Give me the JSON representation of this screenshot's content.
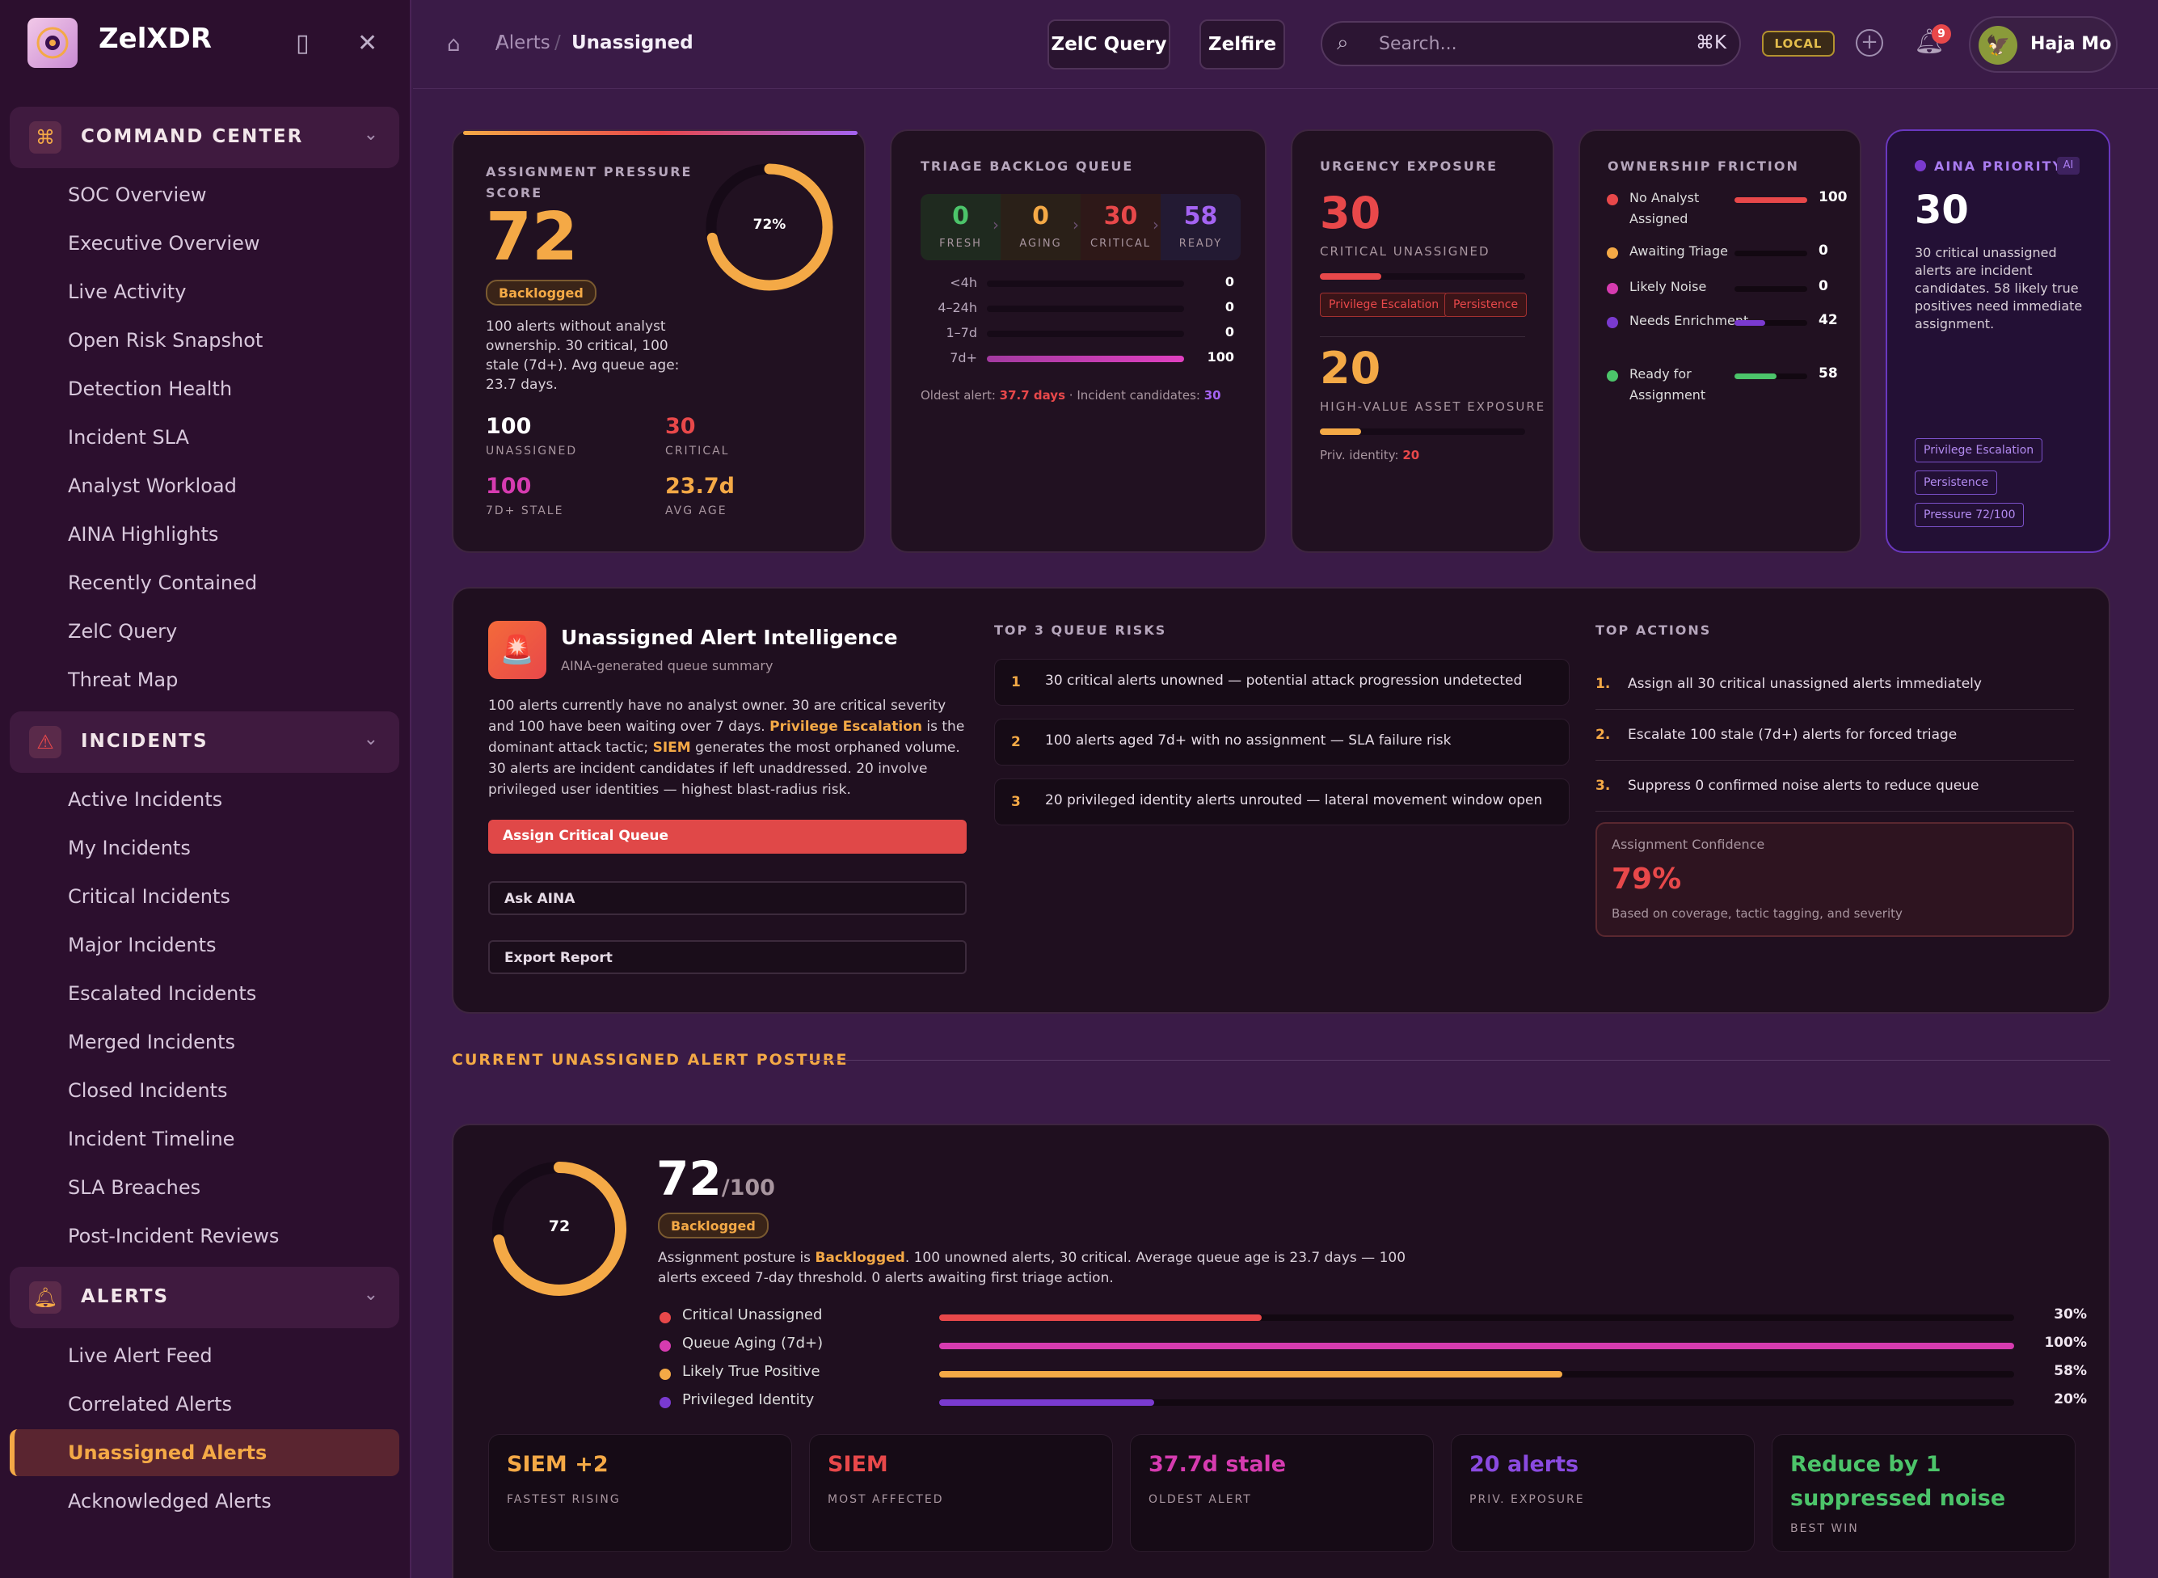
{
  "brand": {
    "name": "ZelXDR"
  },
  "sidebar": {
    "command_center": {
      "label": "COMMAND CENTER",
      "items": [
        "SOC Overview",
        "Executive Overview",
        "Live Activity",
        "Open Risk Snapshot",
        "Detection Health",
        "Incident SLA",
        "Analyst Workload",
        "AINA Highlights",
        "Recently Contained",
        "ZelC Query",
        "Threat Map"
      ]
    },
    "incidents": {
      "label": "INCIDENTS",
      "items": [
        "Active Incidents",
        "My Incidents",
        "Critical Incidents",
        "Major Incidents",
        "Escalated Incidents",
        "Merged Incidents",
        "Closed Incidents",
        "Incident Timeline",
        "SLA Breaches",
        "Post-Incident Reviews"
      ]
    },
    "alerts": {
      "label": "ALERTS",
      "items": [
        "Live Alert Feed",
        "Correlated Alerts",
        "Unassigned Alerts",
        "Acknowledged Alerts"
      ],
      "active": "Unassigned Alerts"
    }
  },
  "topbar": {
    "crumb1": "Alerts",
    "crumb2": "Unassigned",
    "btn_query": "ZelC Query",
    "btn_zelfire": "Zelfire",
    "search_placeholder": "Search...",
    "search_shortcut": "⌘K",
    "env": "LOCAL",
    "notif_count": "9",
    "user": "Haja Mo"
  },
  "pressure": {
    "title": "ASSIGNMENT PRESSURE SCORE",
    "score": "72",
    "ring_label": "72%",
    "ring_pct": 0.72,
    "badge": "Backlogged",
    "desc": "100 alerts without analyst ownership. 30 critical, 100 stale (7d+). Avg queue age: 23.7 days.",
    "stats": [
      {
        "v": "100",
        "l": "UNASSIGNED",
        "c": "#ffffff"
      },
      {
        "v": "30",
        "l": "CRITICAL",
        "c": "#e8484a"
      },
      {
        "v": "100",
        "l": "7D+ STALE",
        "c": "#d63bb0"
      },
      {
        "v": "23.7d",
        "l": "AVG AGE",
        "c": "#f4a946"
      }
    ]
  },
  "triage": {
    "title": "TRIAGE BACKLOG QUEUE",
    "stages": [
      {
        "v": "0",
        "l": "FRESH",
        "c": "#4cc46a"
      },
      {
        "v": "0",
        "l": "AGING",
        "c": "#f4a946"
      },
      {
        "v": "30",
        "l": "CRITICAL",
        "c": "#e8484a"
      },
      {
        "v": "58",
        "l": "READY",
        "c": "#a463f2"
      }
    ],
    "ages": [
      {
        "l": "<4h",
        "v": "0",
        "p": 0
      },
      {
        "l": "4–24h",
        "v": "0",
        "p": 0
      },
      {
        "l": "1–7d",
        "v": "0",
        "p": 0
      },
      {
        "l": "7d+",
        "v": "100",
        "p": 1
      }
    ],
    "foot_label": "Oldest alert:",
    "foot_oldest": "37.7 days",
    "foot_sep": "·",
    "foot_inc_label": "Incident candidates:",
    "foot_inc": "30"
  },
  "urgency": {
    "title": "URGENCY EXPOSURE",
    "v1": "30",
    "l1": "CRITICAL UNASSIGNED",
    "p1": 0.3,
    "tags": [
      "Privilege Escalation",
      "Persistence"
    ],
    "v2": "20",
    "l2": "HIGH-VALUE ASSET EXPOSURE",
    "p2": 0.2,
    "priv_label": "Priv. identity:",
    "priv_v": "20"
  },
  "friction": {
    "title": "OWNERSHIP FRICTION",
    "rows": [
      {
        "l": "No Analyst Assigned",
        "v": "100",
        "p": 1,
        "c": "#e8484a"
      },
      {
        "l": "Awaiting Triage",
        "v": "0",
        "p": 0,
        "c": "#f4a946"
      },
      {
        "l": "Likely Noise",
        "v": "0",
        "p": 0,
        "c": "#d63bb0"
      },
      {
        "l": "Needs Enrichment",
        "v": "42",
        "p": 0.42,
        "c": "#7a3ad0"
      },
      {
        "l": "Ready for Assignment",
        "v": "58",
        "p": 0.58,
        "c": "#4cc46a"
      }
    ]
  },
  "aina": {
    "title": "AINA PRIORITY",
    "ai": "AI",
    "value": "30",
    "desc": "30 critical unassigned alerts are incident candidates. 58 likely true positives need immediate assignment.",
    "tags": [
      "Privilege Escalation",
      "Persistence",
      "Pressure 72/100"
    ]
  },
  "intel": {
    "title": "Unassigned Alert Intelligence",
    "subtitle": "AINA-generated queue summary",
    "p1": "100 alerts currently have no analyst owner. 30 are critical severity and 100 have been waiting over 7 days.",
    "hl1": "Privilege Escalation",
    "p2": "is the dominant attack tactic;",
    "hl2": "SIEM",
    "p3": "generates the most orphaned volume. 30 alerts are incident candidates if left unaddressed. 20 involve privileged user identities — highest blast-radius risk.",
    "btn_primary": "Assign Critical Queue",
    "btn_ask": "Ask AINA",
    "btn_export": "Export Report",
    "risks_title": "TOP 3 QUEUE RISKS",
    "risks": [
      {
        "n": "1",
        "t": "30 critical alerts unowned — potential attack progression undetected"
      },
      {
        "n": "2",
        "t": "100 alerts aged 7d+ with no assignment — SLA failure risk"
      },
      {
        "n": "3",
        "t": "20 privileged identity alerts unrouted — lateral movement window open"
      }
    ],
    "actions_title": "TOP ACTIONS",
    "actions": [
      {
        "n": "1.",
        "t": "Assign all 30 critical unassigned alerts immediately"
      },
      {
        "n": "2.",
        "t": "Escalate 100 stale (7d+) alerts for forced triage"
      },
      {
        "n": "3.",
        "t": "Suppress 0 confirmed noise alerts to reduce queue"
      }
    ],
    "conf_label": "Assignment Confidence",
    "conf_value": "79%",
    "conf_note": "Based on coverage, tactic tagging, and severity"
  },
  "posture": {
    "section_title": "CURRENT UNASSIGNED ALERT POSTURE",
    "score": "72",
    "denom": "/100",
    "ring_label": "72",
    "ring_pct": 0.72,
    "badge": "Backlogged",
    "desc_a": "Assignment posture is",
    "desc_hl": "Backlogged",
    "desc_b": ". 100 unowned alerts, 30 critical. Average queue age is 23.7 days — 100 alerts exceed 7-day threshold. 0 alerts awaiting first triage action.",
    "bars": [
      {
        "l": "Critical Unassigned",
        "p": 0.3,
        "pl": "30%",
        "c": "#e8484a"
      },
      {
        "l": "Queue Aging (7d+)",
        "p": 1,
        "pl": "100%",
        "c": "#d63bb0"
      },
      {
        "l": "Likely True Positive",
        "p": 0.58,
        "pl": "58%",
        "c": "#f4a946"
      },
      {
        "l": "Privileged Identity",
        "p": 0.2,
        "pl": "20%",
        "c": "#7a3ad0"
      }
    ],
    "minis": [
      {
        "v": "SIEM +2",
        "l": "FASTEST RISING",
        "c": "#f4a946"
      },
      {
        "v": "SIEM",
        "l": "MOST AFFECTED",
        "c": "#e8484a"
      },
      {
        "v": "37.7d stale",
        "l": "OLDEST ALERT",
        "c": "#d63bb0"
      },
      {
        "v": "20 alerts",
        "l": "PRIV. EXPOSURE",
        "c": "#8a4ae0"
      },
      {
        "v": "Reduce by 1 suppressed noise",
        "l": "BEST WIN",
        "c": "#4cc46a"
      }
    ]
  },
  "colors": {
    "accent": "#f4a946",
    "critical": "#e8484a",
    "magenta": "#d63bb0",
    "purple": "#7a3ad0",
    "green": "#4cc46a"
  }
}
